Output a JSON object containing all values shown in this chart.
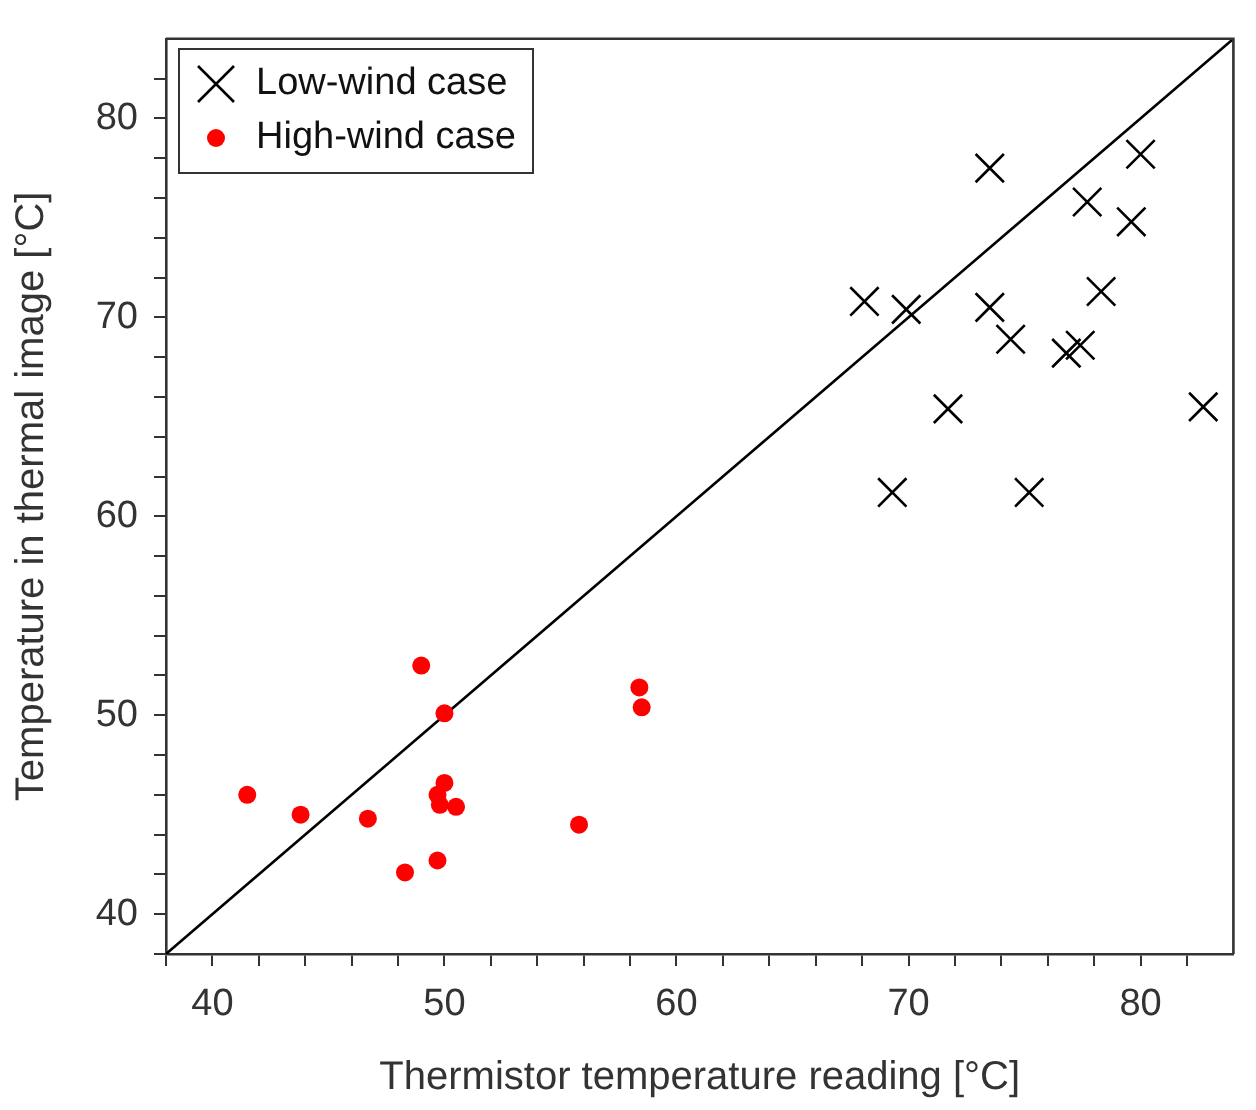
{
  "chart_data": {
    "type": "scatter",
    "xlabel": "Thermistor temperature reading [°C]",
    "ylabel": "Temperature in thermal image [°C]",
    "xlim": [
      38,
      84
    ],
    "ylim": [
      38,
      84
    ],
    "xticks": [
      {
        "value": 38,
        "label": null
      },
      40,
      {
        "value": 42,
        "label": null
      },
      {
        "value": 44,
        "label": null
      },
      {
        "value": 46,
        "label": null
      },
      {
        "value": 48,
        "label": null
      },
      50,
      {
        "value": 52,
        "label": null
      },
      {
        "value": 54,
        "label": null
      },
      {
        "value": 56,
        "label": null
      },
      {
        "value": 58,
        "label": null
      },
      60,
      {
        "value": 62,
        "label": null
      },
      {
        "value": 64,
        "label": null
      },
      {
        "value": 66,
        "label": null
      },
      {
        "value": 68,
        "label": null
      },
      70,
      {
        "value": 72,
        "label": null
      },
      {
        "value": 74,
        "label": null
      },
      {
        "value": 76,
        "label": null
      },
      {
        "value": 78,
        "label": null
      },
      80,
      {
        "value": 82,
        "label": null
      }
    ],
    "yticks": [
      {
        "value": 38,
        "label": null
      },
      40,
      {
        "value": 42,
        "label": null
      },
      {
        "value": 44,
        "label": null
      },
      {
        "value": 46,
        "label": null
      },
      {
        "value": 48,
        "label": null
      },
      50,
      {
        "value": 52,
        "label": null
      },
      {
        "value": 54,
        "label": null
      },
      {
        "value": 56,
        "label": null
      },
      {
        "value": 58,
        "label": null
      },
      60,
      {
        "value": 62,
        "label": null
      },
      {
        "value": 64,
        "label": null
      },
      {
        "value": 66,
        "label": null
      },
      {
        "value": 68,
        "label": null
      },
      70,
      {
        "value": 72,
        "label": null
      },
      {
        "value": 74,
        "label": null
      },
      {
        "value": 76,
        "label": null
      },
      {
        "value": 78,
        "label": null
      },
      80,
      {
        "value": 82,
        "label": null
      }
    ],
    "grid": false,
    "legend": "top left",
    "series": [
      {
        "name": "Low-wind case",
        "color": "#000000",
        "marker": "cross",
        "x": [
          73.5,
          80.0,
          77.7,
          79.6,
          68.1,
          69.9,
          73.5,
          78.3,
          74.4,
          76.8,
          77.4,
          71.7,
          82.7,
          69.3,
          75.2
        ],
        "values": [
          77.5,
          78.2,
          75.8,
          74.8,
          70.8,
          70.4,
          70.5,
          71.3,
          68.9,
          68.2,
          68.6,
          65.4,
          65.5,
          61.2,
          61.2
        ]
      },
      {
        "name": "High-wind case",
        "color": "#ff0000",
        "marker": "circle",
        "x": [
          41.5,
          43.8,
          46.7,
          49.0,
          50.0,
          50.0,
          49.7,
          49.8,
          50.5,
          48.3,
          49.7,
          55.8,
          58.4,
          58.5
        ],
        "values": [
          46.0,
          45.0,
          44.8,
          52.5,
          50.1,
          46.6,
          46.0,
          45.5,
          45.4,
          42.1,
          42.7,
          44.5,
          51.4,
          50.4
        ]
      },
      {
        "type": "line",
        "color": "#000000",
        "marker": "none",
        "line_style": "solid",
        "x": [
          38,
          84
        ],
        "values": [
          38,
          84
        ]
      }
    ]
  }
}
